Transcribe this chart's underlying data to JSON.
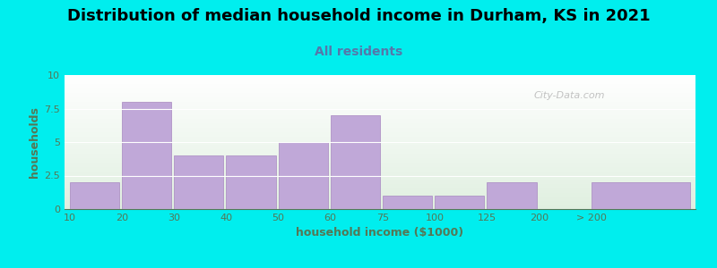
{
  "title": "Distribution of median household income in Durham, KS in 2021",
  "subtitle": "All residents",
  "xlabel": "household income ($1000)",
  "ylabel": "households",
  "bg_outer": "#00EEEE",
  "bar_color": "#c0a8d8",
  "bar_edge_color": "#a888c0",
  "tick_positions": [
    0,
    1,
    2,
    3,
    4,
    5,
    6,
    7,
    8,
    9,
    10
  ],
  "tick_labels": [
    "10",
    "20",
    "30",
    "40",
    "50",
    "60",
    "75",
    "100",
    "125",
    "200",
    "> 200"
  ],
  "bar_lefts": [
    0,
    1,
    2,
    3,
    4,
    5,
    6,
    7,
    8,
    10
  ],
  "bar_widths": [
    1,
    1,
    1,
    1,
    1,
    1,
    1,
    1,
    1,
    2
  ],
  "values": [
    2,
    8,
    4,
    4,
    5,
    7,
    1,
    1,
    2,
    2
  ],
  "ylim": [
    0,
    10
  ],
  "yticks": [
    0,
    2.5,
    5,
    7.5,
    10
  ],
  "title_fontsize": 13,
  "subtitle_fontsize": 10,
  "axis_label_fontsize": 9,
  "tick_fontsize": 8,
  "watermark": "City-Data.com",
  "label_color": "#557755",
  "subtitle_color": "#5577aa"
}
